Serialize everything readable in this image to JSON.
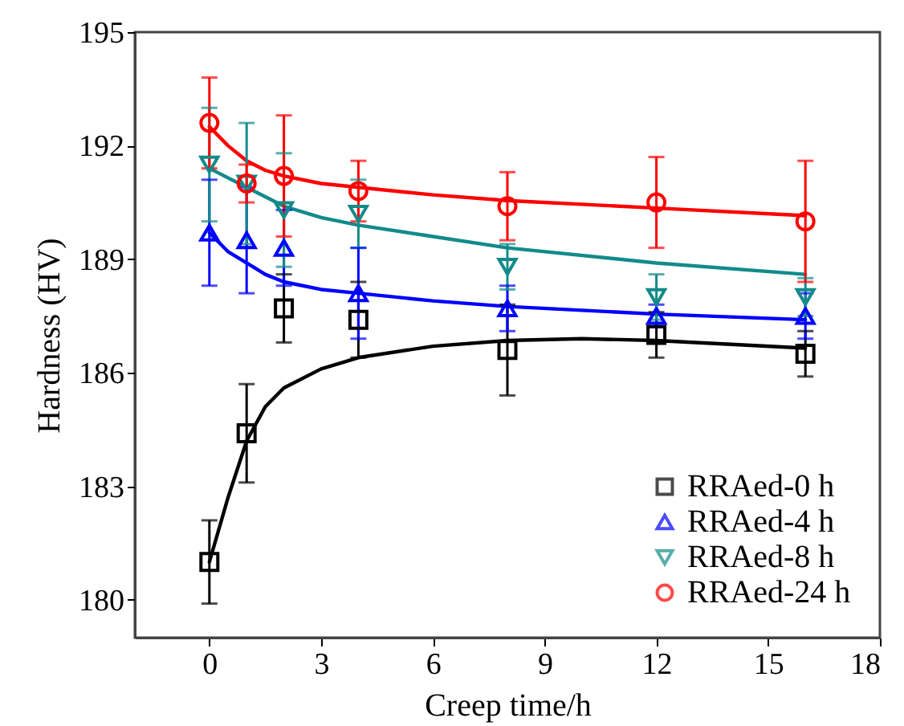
{
  "chart_data": {
    "type": "scatter",
    "xlabel": "Creep time/h",
    "ylabel": "Hardness (HV)",
    "xlim": [
      -2,
      18
    ],
    "ylim": [
      179,
      195
    ],
    "xticks": [
      0,
      3,
      6,
      9,
      12,
      15,
      18
    ],
    "yticks": [
      180,
      183,
      186,
      189,
      192,
      195
    ],
    "legend": "bottom right",
    "grid": false,
    "x": [
      0,
      1,
      2,
      4,
      8,
      12,
      16
    ],
    "series": [
      {
        "name": "RRAed-0 h",
        "color": "#000000",
        "marker": "square",
        "values": [
          181.0,
          184.4,
          187.7,
          187.4,
          186.6,
          187.0,
          186.5
        ],
        "errors": [
          1.1,
          1.3,
          0.9,
          1.0,
          1.2,
          0.6,
          0.6
        ]
      },
      {
        "name": "RRAed-4 h",
        "color": "#0000ff",
        "marker": "triangle",
        "values": [
          189.7,
          189.5,
          189.3,
          188.1,
          187.7,
          187.5,
          187.5
        ],
        "errors": [
          1.4,
          1.4,
          1.0,
          1.2,
          0.6,
          0.3,
          0.6
        ]
      },
      {
        "name": "RRAed-8 h",
        "color": "#138a8a",
        "marker": "triangle-down",
        "values": [
          191.5,
          191.0,
          190.3,
          190.2,
          188.8,
          188.0,
          188.0
        ],
        "errors": [
          1.5,
          1.6,
          1.5,
          0.9,
          0.6,
          0.6,
          0.5
        ]
      },
      {
        "name": "RRAed-24 h",
        "color": "#ff0000",
        "marker": "circle",
        "values": [
          192.6,
          191.0,
          191.2,
          190.8,
          190.4,
          190.5,
          190.0
        ],
        "errors": [
          1.2,
          0.5,
          1.6,
          0.8,
          0.9,
          1.2,
          1.6
        ]
      },
      {
        "type": "line",
        "color": "#000000",
        "x": [
          0,
          0.5,
          1,
          1.5,
          2,
          3,
          4,
          6,
          8,
          10,
          12,
          14,
          16
        ],
        "values": [
          181.0,
          182.7,
          184.2,
          185.1,
          185.6,
          186.1,
          186.4,
          186.7,
          186.85,
          186.9,
          186.85,
          186.75,
          186.65
        ]
      },
      {
        "type": "line",
        "color": "#0000ff",
        "x": [
          0,
          0.5,
          1,
          1.5,
          2,
          3,
          4,
          6,
          8,
          12,
          16
        ],
        "values": [
          189.7,
          189.2,
          188.9,
          188.6,
          188.4,
          188.2,
          188.1,
          187.9,
          187.75,
          187.55,
          187.4
        ]
      },
      {
        "type": "line",
        "color": "#138a8a",
        "x": [
          0,
          1,
          2,
          3,
          4,
          6,
          8,
          12,
          16
        ],
        "values": [
          191.4,
          190.9,
          190.4,
          190.1,
          189.9,
          189.6,
          189.3,
          188.9,
          188.6
        ]
      },
      {
        "type": "line",
        "color": "#ff0000",
        "x": [
          0,
          0.5,
          1,
          1.5,
          2,
          3,
          4,
          6,
          8,
          12,
          16
        ],
        "values": [
          192.5,
          192.0,
          191.6,
          191.35,
          191.2,
          191.0,
          190.9,
          190.7,
          190.55,
          190.35,
          190.15
        ]
      }
    ]
  }
}
